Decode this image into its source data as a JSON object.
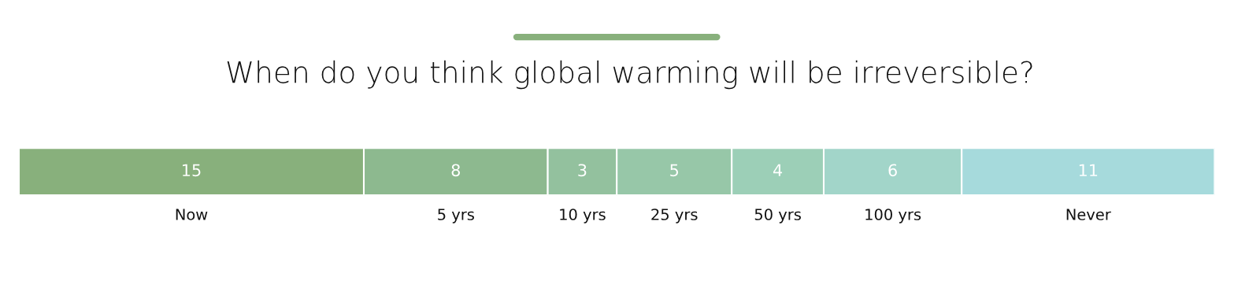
{
  "chart_data": {
    "type": "bar",
    "title": "When do you think global warming will be irreversible?",
    "stacked": true,
    "orientation": "horizontal",
    "data_labels": true,
    "legend": false,
    "tick_labels": false,
    "categories": [
      null
    ],
    "series": [
      {
        "name": "Now",
        "color": "#88b07c",
        "values": [
          15
        ]
      },
      {
        "name": "5 yrs",
        "color": "#8db98f",
        "values": [
          8
        ]
      },
      {
        "name": "10 yrs",
        "color": "#93c19e",
        "values": [
          3
        ]
      },
      {
        "name": "25 yrs",
        "color": "#97c7a8",
        "values": [
          5
        ]
      },
      {
        "name": "50 yrs",
        "color": "#9ccfb7",
        "values": [
          4
        ]
      },
      {
        "name": "100 yrs",
        "color": "#a2d5c9",
        "values": [
          6
        ]
      },
      {
        "name": "Never",
        "color": "#a6dadc",
        "values": [
          11
        ]
      }
    ]
  }
}
